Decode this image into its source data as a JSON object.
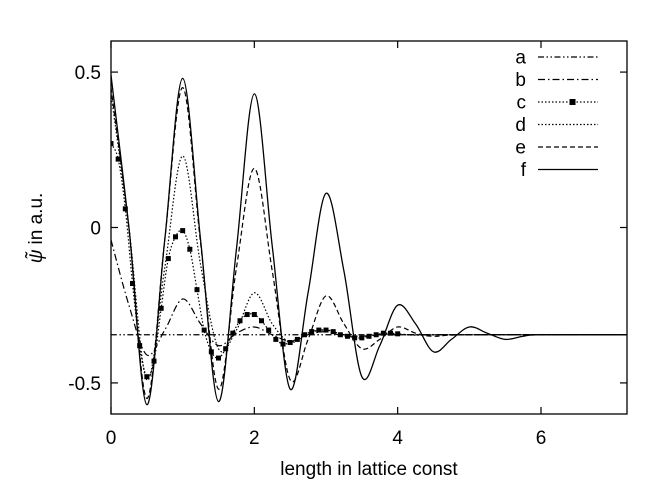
{
  "chart_data": {
    "type": "line",
    "title": "",
    "xlabel": "length in lattice const",
    "ylabel_symbol": "ψ̃",
    "ylabel_rest": "in a.u.",
    "xlim": [
      0,
      7.2
    ],
    "ylim": [
      -0.6,
      0.6
    ],
    "x_ticks": [
      0,
      2,
      4,
      6
    ],
    "x_tick_labels": [
      "0",
      "2",
      "4",
      "6"
    ],
    "y_ticks": [
      -0.5,
      0,
      0.5
    ],
    "y_tick_labels": [
      "-0.5",
      "0",
      "0.5"
    ],
    "grid": false,
    "legend_position": "top-right",
    "series": [
      {
        "name": "a",
        "style": "dash-dot-dot",
        "marker": "none",
        "x": [
          0,
          7.2
        ],
        "y": [
          -0.345,
          -0.345
        ]
      },
      {
        "name": "b",
        "style": "dash-dot",
        "marker": "none",
        "x": [
          0,
          0.25,
          0.5,
          0.75,
          1.0,
          1.25,
          1.5,
          1.75,
          2.0,
          2.25,
          2.5,
          2.75,
          3.0,
          3.25,
          3.5,
          3.75,
          4.0,
          4.5,
          5.0,
          7.2
        ],
        "y": [
          -0.04,
          -0.25,
          -0.41,
          -0.33,
          -0.23,
          -0.31,
          -0.38,
          -0.34,
          -0.32,
          -0.345,
          -0.365,
          -0.345,
          -0.335,
          -0.35,
          -0.35,
          -0.345,
          -0.345,
          -0.345,
          -0.345,
          -0.345
        ]
      },
      {
        "name": "c",
        "style": "dotted",
        "marker": "square",
        "x": [
          0,
          0.1,
          0.2,
          0.3,
          0.4,
          0.5,
          0.6,
          0.7,
          0.8,
          0.9,
          1.0,
          1.1,
          1.2,
          1.3,
          1.4,
          1.5,
          1.6,
          1.7,
          1.8,
          1.9,
          2.0,
          2.1,
          2.2,
          2.3,
          2.4,
          2.5,
          2.6,
          2.7,
          2.8,
          2.9,
          3.0,
          3.1,
          3.2,
          3.3,
          3.4,
          3.5,
          3.6,
          3.7,
          3.8,
          3.9,
          4.0,
          4.2,
          4.4,
          4.6,
          4.8,
          5.0,
          5.5,
          6.0,
          6.5,
          7.0,
          7.2
        ],
        "y": [
          0.27,
          0.22,
          0.06,
          -0.18,
          -0.38,
          -0.48,
          -0.43,
          -0.26,
          -0.1,
          -0.03,
          -0.01,
          -0.07,
          -0.2,
          -0.33,
          -0.4,
          -0.42,
          -0.39,
          -0.34,
          -0.3,
          -0.28,
          -0.28,
          -0.3,
          -0.33,
          -0.36,
          -0.375,
          -0.37,
          -0.36,
          -0.345,
          -0.335,
          -0.33,
          -0.33,
          -0.335,
          -0.345,
          -0.35,
          -0.355,
          -0.355,
          -0.35,
          -0.345,
          -0.34,
          -0.34,
          -0.342,
          -0.346,
          -0.346,
          -0.345,
          -0.345,
          -0.345,
          -0.345,
          -0.345,
          -0.345,
          -0.345,
          -0.345
        ]
      },
      {
        "name": "d",
        "style": "dotted",
        "marker": "none",
        "x": [
          0,
          0.25,
          0.5,
          0.75,
          1.0,
          1.25,
          1.5,
          1.75,
          2.0,
          2.25,
          2.5,
          2.75,
          3.0,
          3.25,
          3.5,
          3.75,
          4.0,
          4.5,
          7.2
        ],
        "y": [
          0.43,
          0.0,
          -0.49,
          -0.13,
          0.23,
          -0.12,
          -0.39,
          -0.33,
          -0.21,
          -0.31,
          -0.37,
          -0.34,
          -0.33,
          -0.345,
          -0.35,
          -0.345,
          -0.345,
          -0.345,
          -0.345
        ]
      },
      {
        "name": "e",
        "style": "dashed",
        "marker": "none",
        "x": [
          0,
          0.25,
          0.5,
          0.75,
          1.0,
          1.25,
          1.5,
          1.75,
          2.0,
          2.25,
          2.5,
          2.75,
          3.0,
          3.25,
          3.5,
          3.75,
          4.0,
          4.25,
          4.5,
          5.0,
          7.2
        ],
        "y": [
          0.45,
          0.0,
          -0.55,
          -0.04,
          0.45,
          -0.05,
          -0.52,
          -0.13,
          0.19,
          -0.14,
          -0.49,
          -0.36,
          -0.22,
          -0.31,
          -0.39,
          -0.36,
          -0.32,
          -0.34,
          -0.35,
          -0.345,
          -0.345
        ]
      },
      {
        "name": "f",
        "style": "solid",
        "marker": "none",
        "x": [
          0,
          0.25,
          0.5,
          0.75,
          1.0,
          1.25,
          1.5,
          1.75,
          2.0,
          2.25,
          2.5,
          2.75,
          3.0,
          3.25,
          3.5,
          3.75,
          4.0,
          4.25,
          4.5,
          4.75,
          5.0,
          5.25,
          5.5,
          5.75,
          6.0,
          7.2
        ],
        "y": [
          0.49,
          0.0,
          -0.57,
          -0.04,
          0.48,
          -0.04,
          -0.56,
          -0.07,
          0.43,
          -0.06,
          -0.52,
          -0.21,
          0.11,
          -0.14,
          -0.48,
          -0.38,
          -0.25,
          -0.31,
          -0.4,
          -0.36,
          -0.32,
          -0.34,
          -0.36,
          -0.35,
          -0.345,
          -0.345
        ]
      }
    ]
  }
}
